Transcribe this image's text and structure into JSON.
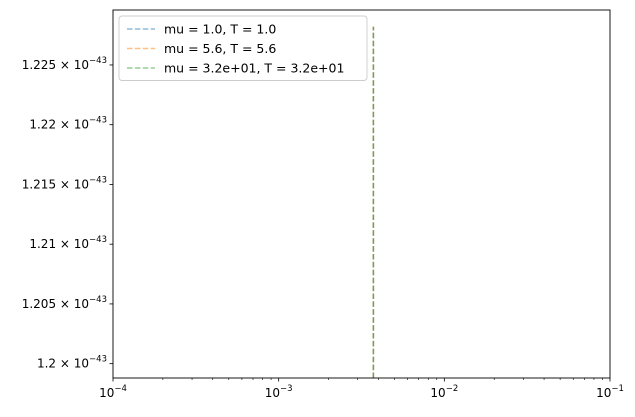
{
  "chart_data": {
    "type": "line",
    "title": "",
    "xlabel": "",
    "ylabel": "",
    "xscale": "log",
    "xlim": [
      0.0001,
      0.1
    ],
    "ylim": [
      1.1988e-43,
      1.2296e-43
    ],
    "grid": false,
    "legend_position": "top-left",
    "x_ticks": [
      {
        "value": 0.0001,
        "base": "10",
        "exp": "−4"
      },
      {
        "value": 0.001,
        "base": "10",
        "exp": "−3"
      },
      {
        "value": 0.01,
        "base": "10",
        "exp": "−2"
      },
      {
        "value": 0.1,
        "base": "10",
        "exp": "−1"
      }
    ],
    "y_ticks": [
      {
        "value": 1.2e-43,
        "mant": "1.2",
        "base": "10",
        "exp": "−43"
      },
      {
        "value": 1.205e-43,
        "mant": "1.205",
        "base": "10",
        "exp": "−43"
      },
      {
        "value": 1.21e-43,
        "mant": "1.21",
        "base": "10",
        "exp": "−43"
      },
      {
        "value": 1.215e-43,
        "mant": "1.215",
        "base": "10",
        "exp": "−43"
      },
      {
        "value": 1.22e-43,
        "mant": "1.22",
        "base": "10",
        "exp": "−43"
      },
      {
        "value": 1.225e-43,
        "mant": "1.225",
        "base": "10",
        "exp": "−43"
      }
    ],
    "series": [
      {
        "name": "mu = 1.0, T = 1.0",
        "color": "#1f77b4",
        "x": [
          0.00373,
          0.00373
        ],
        "y": [
          1.1988e-43,
          1.2282e-43
        ]
      },
      {
        "name": "mu = 5.6, T = 5.6",
        "color": "#ff7f0e",
        "x": [
          0.00373,
          0.00373
        ],
        "y": [
          1.1988e-43,
          1.2282e-43
        ]
      },
      {
        "name": "mu = 3.2e+01, T = 3.2e+01",
        "color": "#2ca02c",
        "x": [
          0.00373,
          0.00373
        ],
        "y": [
          1.1988e-43,
          1.2282e-43
        ]
      }
    ]
  }
}
